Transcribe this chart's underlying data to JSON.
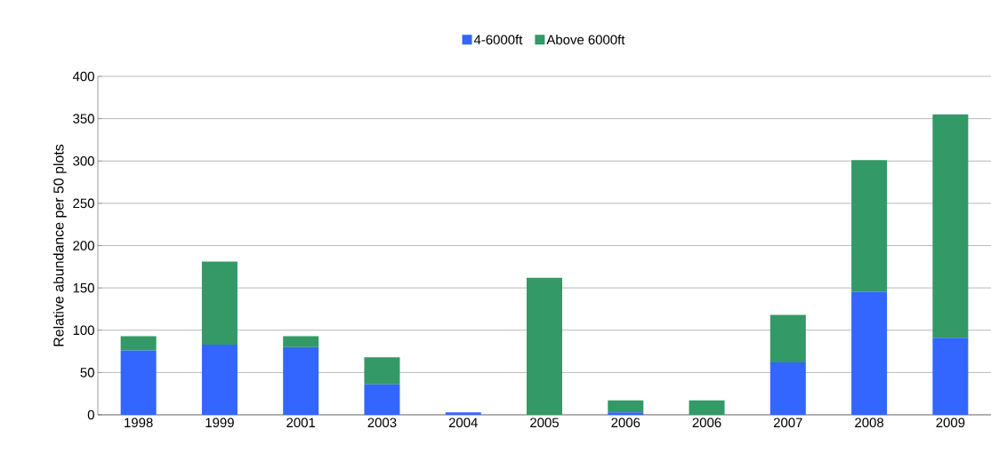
{
  "chart_data": {
    "type": "bar",
    "stacked": true,
    "ylabel": "Relative abundance per 50 plots",
    "categories": [
      "1998",
      "1999",
      "2001",
      "2003",
      "2004",
      "2005",
      "2006",
      "2006",
      "2007",
      "2008",
      "2009"
    ],
    "series": [
      {
        "name": "4-6000ft",
        "color": "#3366ff",
        "values": [
          76,
          83,
          80,
          36,
          3,
          0,
          3,
          0,
          62,
          145,
          91
        ]
      },
      {
        "name": "Above 6000ft",
        "color": "#339966",
        "values": [
          17,
          98,
          13,
          32,
          0,
          162,
          14,
          17,
          56,
          156,
          264
        ]
      }
    ],
    "ylim": [
      0,
      400
    ],
    "yticks": [
      0,
      50,
      100,
      150,
      200,
      250,
      300,
      350,
      400
    ],
    "grid": "y",
    "legend": "top"
  }
}
